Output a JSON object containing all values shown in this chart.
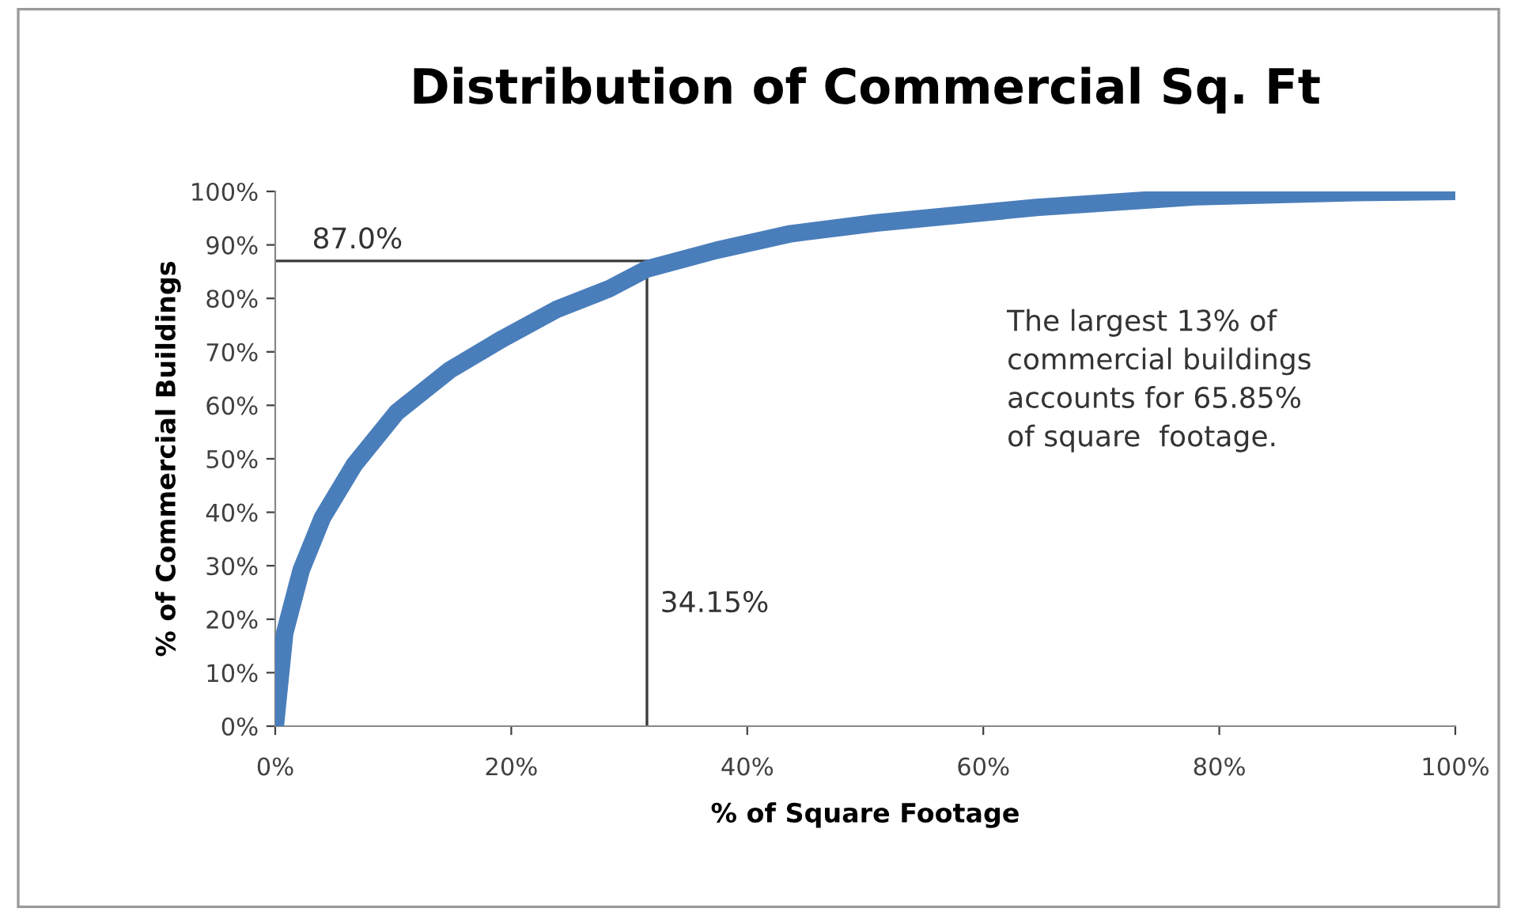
{
  "chart_data": {
    "type": "line",
    "title": "Distribution of Commercial Sq. Ft",
    "xlabel": "% of Square Footage",
    "ylabel": "% of Commercial Buildings",
    "series": [
      {
        "color": "#4a7ebb",
        "x": [
          0,
          0.8,
          2.2,
          4.0,
          6.7,
          10.3,
          14.8,
          19.3,
          23.8,
          28.3,
          31.5,
          37.4,
          43.7,
          50.9,
          64.5,
          78.0,
          91.5,
          100
        ],
        "values": [
          0,
          17.4,
          29.2,
          39.0,
          48.9,
          58.7,
          66.6,
          72.5,
          77.9,
          81.8,
          85.5,
          89.0,
          92.1,
          94.1,
          97.0,
          99.0,
          99.8,
          100
        ]
      },
      {
        "color": "#3a3a3a",
        "x": [
          0,
          31.5
        ],
        "values": [
          87,
          87
        ]
      },
      {
        "color": "#3a3a3a",
        "x": [
          31.5,
          31.5
        ],
        "values": [
          0,
          87
        ]
      }
    ],
    "annotations": [
      {
        "text": "87.0%",
        "x": 2,
        "y": 87
      },
      {
        "text": "34.15%",
        "x": 31.5,
        "y": 19
      },
      "The largest 13% of\ncommercial buildings\naccounts for 65.85%\nof square  footage."
    ],
    "xlim": [
      0,
      100
    ],
    "ylim": [
      0,
      100
    ],
    "xticks": [
      {
        "value": 0,
        "label": "0%"
      },
      {
        "value": 20,
        "label": "20%"
      },
      {
        "value": 40,
        "label": "40%"
      },
      {
        "value": 60,
        "label": "60%"
      },
      {
        "value": 80,
        "label": "80%"
      },
      {
        "value": 100,
        "label": "100%"
      }
    ],
    "yticks": [
      {
        "value": 0,
        "label": "0%"
      },
      {
        "value": 10,
        "label": "10%"
      },
      {
        "value": 20,
        "label": "20%"
      },
      {
        "value": 30,
        "label": "30%"
      },
      {
        "value": 40,
        "label": "40%"
      },
      {
        "value": 50,
        "label": "50%"
      },
      {
        "value": 60,
        "label": "60%"
      },
      {
        "value": 70,
        "label": "70%"
      },
      {
        "value": 80,
        "label": "80%"
      },
      {
        "value": 90,
        "label": "90%"
      },
      {
        "value": 100,
        "label": "100%"
      }
    ],
    "grid": false,
    "legend": false
  }
}
